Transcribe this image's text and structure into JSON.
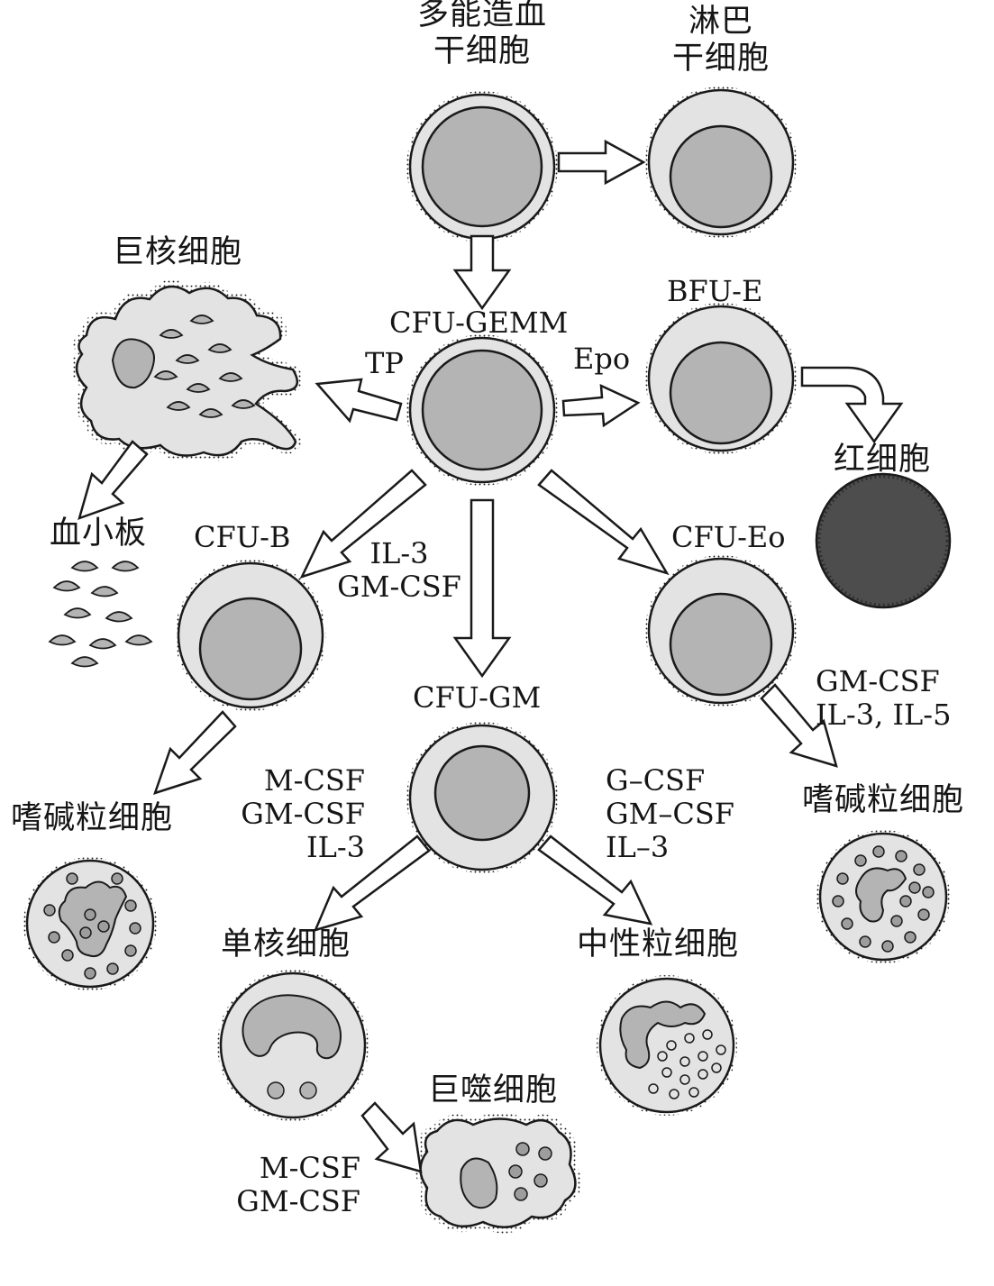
{
  "colors": {
    "ink": "#1a1a1a",
    "cytoplasm": "#e3e3e3",
    "nucleus": "#b4b4b4",
    "granule": "#9d9d9d",
    "erythrocyte": "#4d4d4d",
    "arrow_fill": "#ffffff"
  },
  "labels": {
    "pluripotent_stem_cell": [
      "多能造血",
      "干细胞"
    ],
    "lymphoid_stem_cell": [
      "淋巴",
      "干细胞"
    ],
    "megakaryocyte": "巨核细胞",
    "cfu_gemm": "CFU-GEMM",
    "bfu_e": "BFU-E",
    "tp": "TP",
    "epo": "Epo",
    "erythrocyte": "红细胞",
    "platelets": "血小板",
    "cfu_b": "CFU-B",
    "il3_gmcsf": [
      "IL-3",
      "GM-CSF"
    ],
    "cfu_eo": "CFU-Eo",
    "cfu_eo_factors": [
      "GM-CSF",
      "IL-3, IL-5"
    ],
    "cfu_gm": "CFU-GM",
    "basophil": "嗜碱粒细胞",
    "eosinophil": "嗜碱粒细胞",
    "mono_factors": [
      "M-CSF",
      "GM-CSF",
      "IL-3"
    ],
    "neutro_factors": [
      "G–CSF",
      "GM–CSF",
      "IL–3"
    ],
    "monocyte": "单核细胞",
    "neutrophil": "中性粒细胞",
    "macrophage": "巨噬细胞",
    "macro_factors": [
      "M-CSF",
      "GM-CSF"
    ]
  }
}
